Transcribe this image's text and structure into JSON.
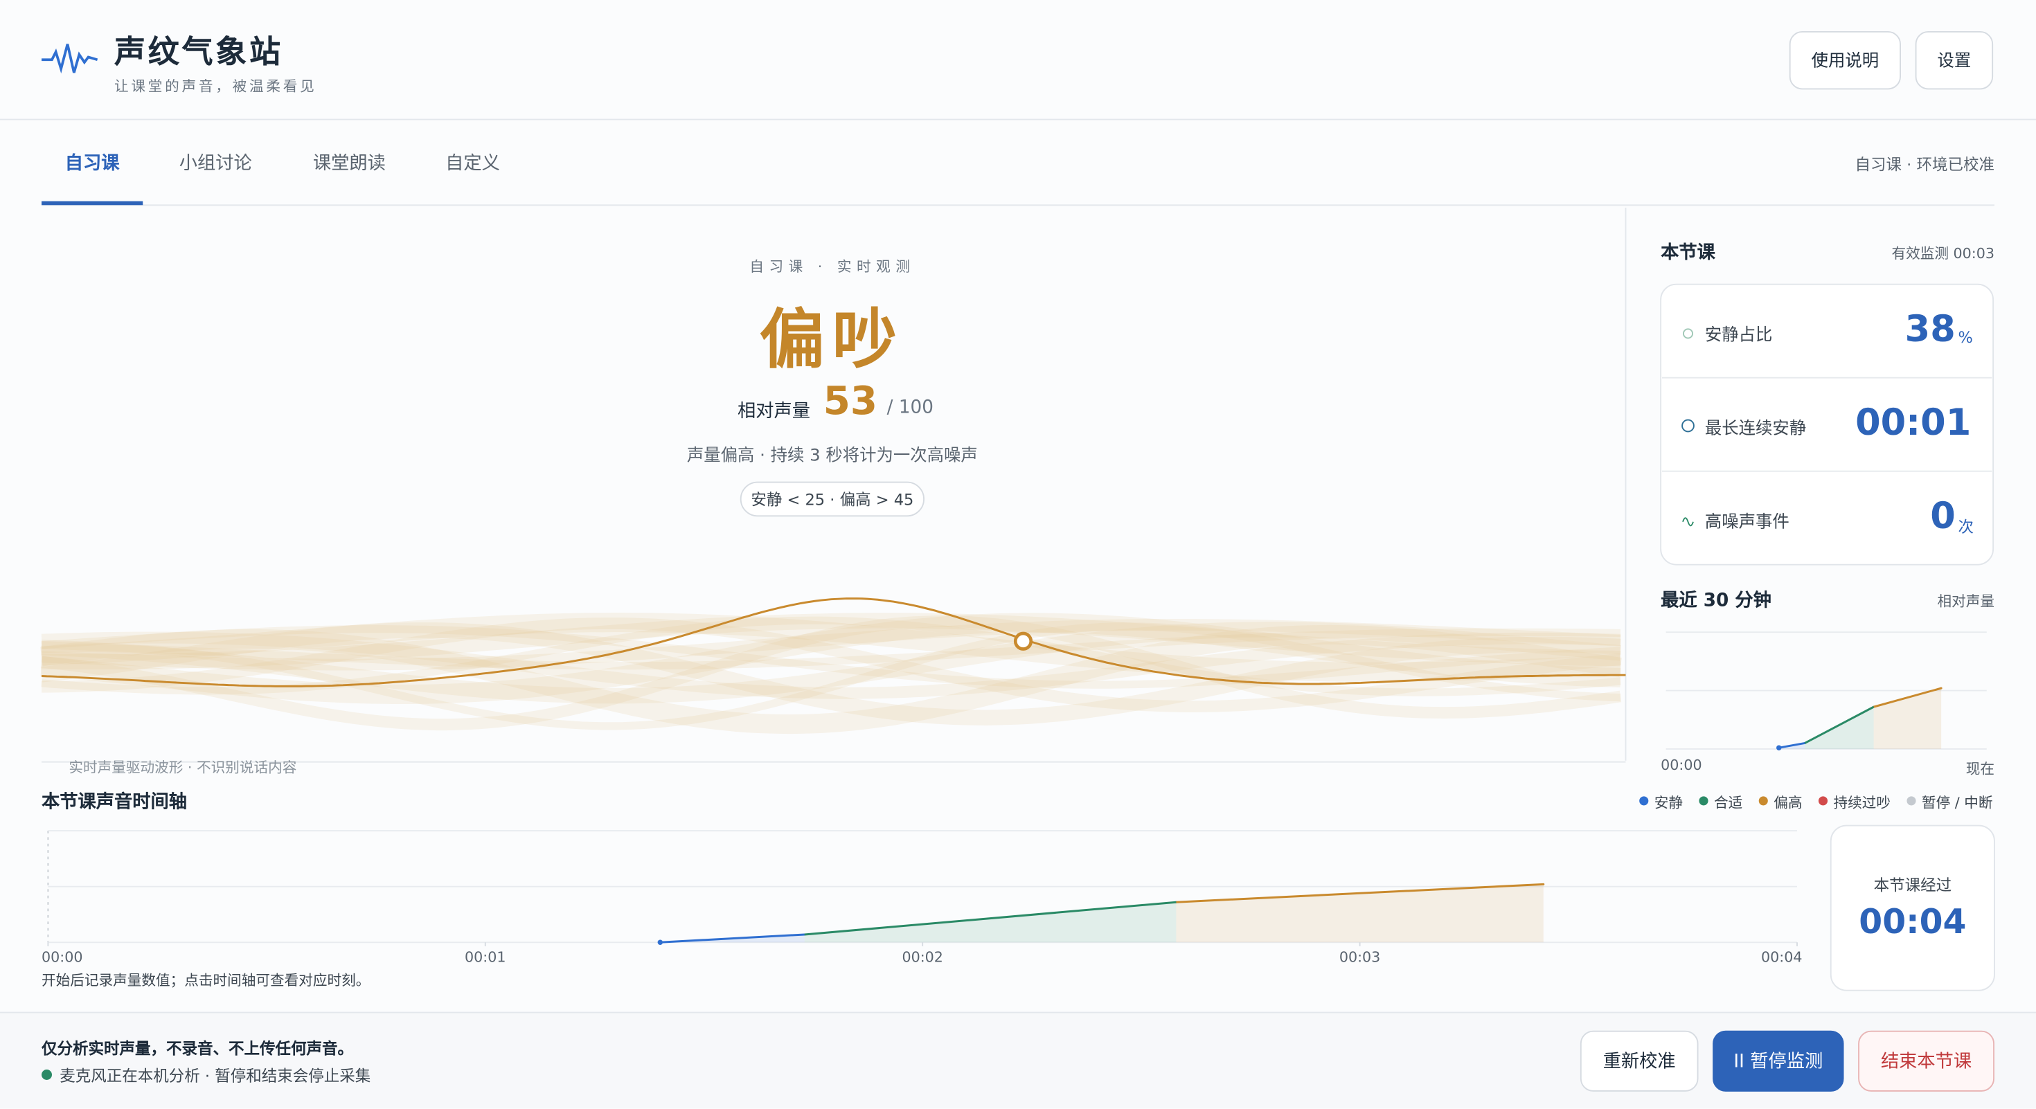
{
  "header": {
    "title": "声纹气象站",
    "subtitle": "让课堂的声音，被温柔看见",
    "buttons": [
      "使用说明",
      "设置"
    ]
  },
  "tabs": {
    "items": [
      "自习课",
      "小组讨论",
      "课堂朗读",
      "自定义"
    ],
    "active": 0,
    "status": "自习课 · 环境已校准"
  },
  "monitor": {
    "eyebrow": "自习课 · 实时观测",
    "state": "偏吵",
    "volume_label": "相对声量",
    "volume": 53,
    "volume_max": "/ 100",
    "hint": "声量偏高 · 持续 3 秒将计为一次高噪声",
    "thresholds": "安静 < 25 · 偏高 > 45",
    "wave_note": "实时声量驱动波形 · 不识别说话内容"
  },
  "session": {
    "title": "本节课",
    "monitored": "有效监测 00:03",
    "stats": [
      {
        "label": "安静占比",
        "value": "38",
        "unit": "%"
      },
      {
        "label": "最长连续安静",
        "value": "00:01"
      },
      {
        "label": "高噪声事件",
        "value": "0",
        "unit": "次"
      }
    ]
  },
  "recent": {
    "title": "最近 30 分钟",
    "axis_label": "相对声量",
    "start_label": "00:00",
    "end_label": "现在",
    "values": [
      1,
      5,
      36,
      52
    ],
    "colors": [
      "#2f6fd1",
      "#2f6fd1",
      "#2a8a66",
      "#c98a2e"
    ],
    "ylim": [
      0,
      100
    ],
    "yticks": [
      0,
      50,
      100
    ]
  },
  "legend": [
    {
      "name": "安静",
      "color": "#2f6fd1"
    },
    {
      "name": "合适",
      "color": "#2a8a66"
    },
    {
      "name": "偏高",
      "color": "#c98a2e"
    },
    {
      "name": "持续过吵",
      "color": "#d24b4b"
    },
    {
      "name": "暂停 / 中断",
      "color": "#c4c9cf"
    }
  ],
  "timeline": {
    "title": "本节课声音时间轴",
    "x": [
      1.4,
      1.73,
      2.58,
      3.42
    ],
    "values": [
      0,
      7,
      36,
      52
    ],
    "colors": [
      "#2f6fd1",
      "#2f6fd1",
      "#2a8a66",
      "#c98a2e"
    ],
    "xlim": [
      0,
      4
    ],
    "xticks": [
      {
        "value": 0,
        "label": "00:00"
      },
      {
        "value": 1,
        "label": "00:01"
      },
      {
        "value": 2,
        "label": "00:02"
      },
      {
        "value": 3,
        "label": "00:03"
      },
      {
        "value": 4,
        "label": "00:04"
      }
    ],
    "ylim": [
      0,
      100
    ],
    "yticks": [
      0,
      50,
      100
    ],
    "note": "开始后记录声量数值；点击时间轴可查看对应时刻。",
    "elapsed_label": "本节课经过",
    "elapsed": "00:04"
  },
  "footer": {
    "privacy": "仅分析实时声量，不录音、不上传任何声音。",
    "status": "麦克风正在本机分析 · 暂停和结束会停止采集",
    "buttons": [
      "重新校准",
      "II 暂停监测",
      "结束本节课"
    ]
  }
}
